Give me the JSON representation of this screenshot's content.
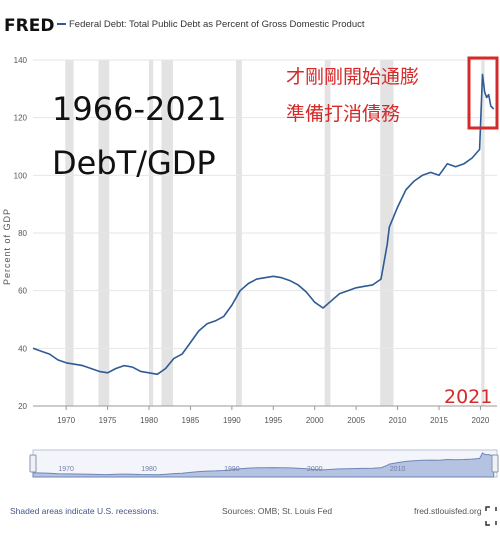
{
  "header": {
    "logo": "FRED",
    "series_title": "Federal Debt: Total Public Debt as Percent of Gross Domestic Product"
  },
  "annotations": {
    "period": "1966-2021",
    "metric": "DebT/GDP",
    "note_line1": "才剛剛開始通膨",
    "note_line2": "準備打消債務",
    "year_label": "2021"
  },
  "footer": {
    "recessions_note": "Shaded areas indicate U.S. recessions.",
    "sources": "Sources: OMB; St. Louis Fed",
    "site": "fred.stlouisfed.org"
  },
  "colors": {
    "line": "#2d5b94",
    "recession": "#e3e3e3",
    "annotation": "#d42a2a",
    "nav_fill": "#b4c3e1"
  },
  "navigator": {
    "tick_labels": [
      "1970",
      "1980",
      "1990",
      "2000",
      "2010"
    ]
  },
  "chart_data": {
    "type": "line",
    "title": "Federal Debt: Total Public Debt as Percent of Gross Domestic Product",
    "ylabel": "Percent of GDP",
    "xlabel": "",
    "xlim": [
      1966,
      2022
    ],
    "ylim": [
      20,
      140
    ],
    "y_ticks": [
      20,
      40,
      60,
      80,
      100,
      120,
      140
    ],
    "x_ticks": [
      1970,
      1975,
      1980,
      1985,
      1990,
      1995,
      2000,
      2005,
      2010,
      2015,
      2020
    ],
    "grid": "horizontal",
    "recessions": [
      [
        1969.9,
        1970.9
      ],
      [
        1973.9,
        1975.2
      ],
      [
        1980.0,
        1980.5
      ],
      [
        1981.5,
        1982.9
      ],
      [
        1990.5,
        1991.2
      ],
      [
        2001.2,
        2001.9
      ],
      [
        2007.9,
        2009.5
      ],
      [
        2020.1,
        2020.5
      ]
    ],
    "series": [
      {
        "x": [
          1966,
          1967,
          1968,
          1969,
          1970,
          1971,
          1972,
          1973,
          1974,
          1975,
          1976,
          1977,
          1978,
          1979,
          1980,
          1981,
          1982,
          1983,
          1984,
          1985,
          1986,
          1987,
          1988,
          1989,
          1990,
          1991,
          1992,
          1993,
          1994,
          1995,
          1996,
          1997,
          1998,
          1999,
          2000,
          2001,
          2002,
          2003,
          2004,
          2005,
          2006,
          2007,
          2008,
          2008.75,
          2009,
          2010,
          2011,
          2012,
          2013,
          2014,
          2015,
          2016,
          2017,
          2018,
          2019,
          2019.9,
          2020.25,
          2020.5,
          2020.75,
          2021,
          2021.25,
          2021.6
        ],
        "y": [
          40,
          39,
          38,
          36,
          35,
          34.5,
          34,
          33,
          32,
          31.5,
          33,
          34,
          33.5,
          32,
          31.5,
          31,
          33,
          36.5,
          38,
          42,
          46,
          48.5,
          49.5,
          51,
          55,
          60,
          62.5,
          64,
          64.5,
          65,
          64.5,
          63.5,
          62,
          59.5,
          56,
          54,
          56.5,
          59,
          60,
          61,
          61.5,
          62,
          64,
          76,
          82,
          89,
          95,
          98,
          100,
          101,
          100,
          104,
          103,
          104,
          106,
          109,
          135,
          129,
          127,
          128,
          124,
          123
        ]
      }
    ]
  }
}
